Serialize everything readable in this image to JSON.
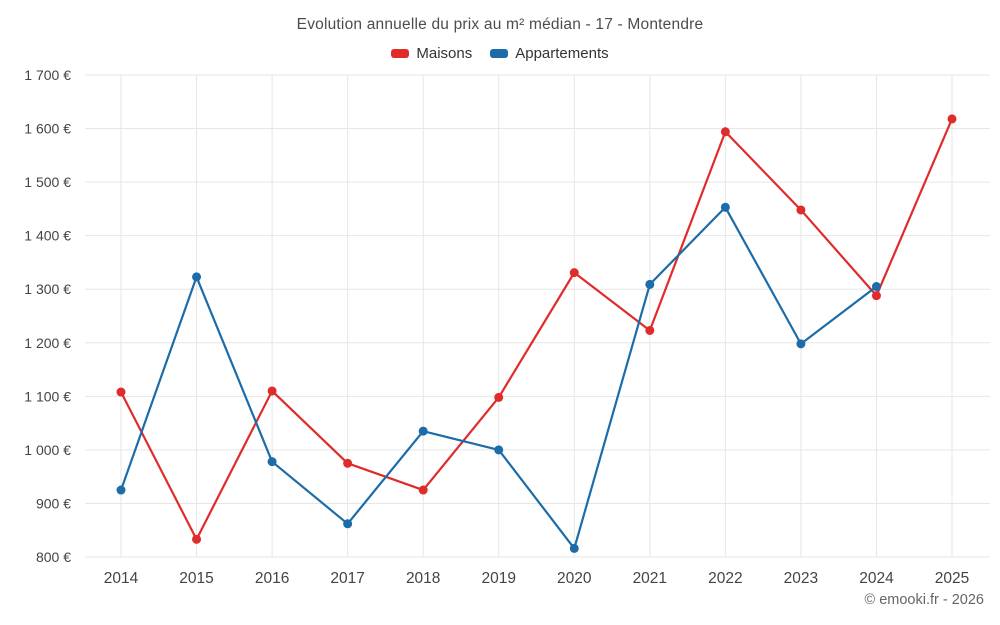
{
  "title": "Evolution annuelle du prix au m² médian - 17 - Montendre",
  "footer": "© emooki.fr - 2026",
  "colors": {
    "grid": "#e6e6e6",
    "tick_text": "#444444",
    "title_text": "#4d4d4d"
  },
  "chart_data": {
    "type": "line",
    "x": [
      2014,
      2015,
      2016,
      2017,
      2018,
      2019,
      2020,
      2021,
      2022,
      2023,
      2024,
      2025
    ],
    "series": [
      {
        "name": "Maisons",
        "color": "#e02b2b",
        "values": [
          1108,
          833,
          1110,
          975,
          925,
          1098,
          1331,
          1223,
          1594,
          1448,
          1288,
          1618
        ]
      },
      {
        "name": "Appartements",
        "color": "#1b6ca8",
        "values": [
          925,
          1323,
          978,
          862,
          1035,
          1000,
          816,
          1309,
          1453,
          1198,
          1305,
          null
        ]
      }
    ],
    "ylim": [
      800,
      1700
    ],
    "ytick_step": 100,
    "ytick_suffix": "€",
    "grid": true,
    "legend_position": "top",
    "marker": "circle"
  }
}
